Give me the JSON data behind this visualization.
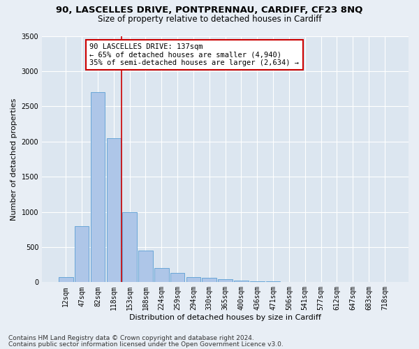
{
  "title1": "90, LASCELLES DRIVE, PONTPRENNAU, CARDIFF, CF23 8NQ",
  "title2": "Size of property relative to detached houses in Cardiff",
  "xlabel": "Distribution of detached houses by size in Cardiff",
  "ylabel": "Number of detached properties",
  "categories": [
    "12sqm",
    "47sqm",
    "82sqm",
    "118sqm",
    "153sqm",
    "188sqm",
    "224sqm",
    "259sqm",
    "294sqm",
    "330sqm",
    "365sqm",
    "400sqm",
    "436sqm",
    "471sqm",
    "506sqm",
    "541sqm",
    "577sqm",
    "612sqm",
    "647sqm",
    "683sqm",
    "718sqm"
  ],
  "values": [
    75,
    800,
    2700,
    2050,
    1000,
    450,
    200,
    130,
    75,
    60,
    40,
    25,
    15,
    15,
    5,
    3,
    2,
    1,
    1,
    0,
    0
  ],
  "bar_color": "#aec6e8",
  "bar_edgecolor": "#5a9fd4",
  "vline_x": 3.5,
  "vline_color": "#cc0000",
  "annotation_text": "90 LASCELLES DRIVE: 137sqm\n← 65% of detached houses are smaller (4,940)\n35% of semi-detached houses are larger (2,634) →",
  "annotation_box_edgecolor": "#cc0000",
  "annotation_box_facecolor": "#ffffff",
  "ylim": [
    0,
    3500
  ],
  "yticks": [
    0,
    500,
    1000,
    1500,
    2000,
    2500,
    3000,
    3500
  ],
  "footer1": "Contains HM Land Registry data © Crown copyright and database right 2024.",
  "footer2": "Contains public sector information licensed under the Open Government Licence v3.0.",
  "background_color": "#e8eef5",
  "plot_background": "#dce6f0",
  "title1_fontsize": 9.5,
  "title2_fontsize": 8.5,
  "xlabel_fontsize": 8,
  "ylabel_fontsize": 8,
  "tick_fontsize": 7,
  "footer_fontsize": 6.5,
  "annotation_fontsize": 7.5
}
